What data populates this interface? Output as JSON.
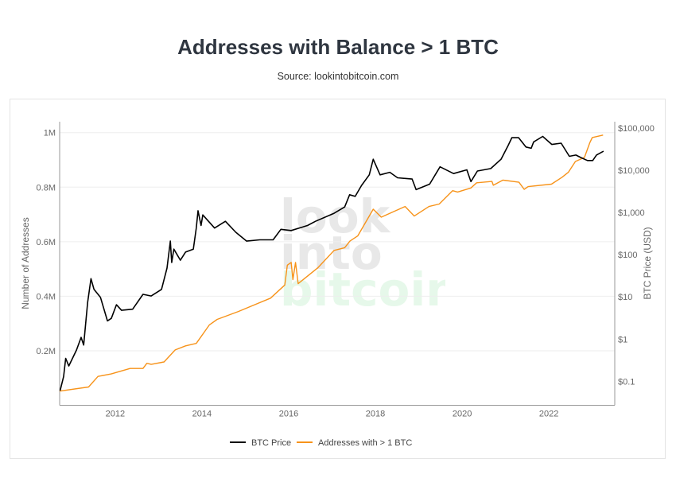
{
  "title": "Addresses with Balance > 1 BTC",
  "subtitle": "Source: lookintobitcoin.com",
  "watermark": [
    "look",
    "into",
    "bitcoin"
  ],
  "chart_data": {
    "type": "line",
    "xlabel": "",
    "ylabel_left": "Number of Addresses",
    "ylabel_right": "BTC Price (USD)",
    "x_range": [
      "2010-09-20",
      "2023-07-08"
    ],
    "x_ticks": [
      "2012",
      "2014",
      "2016",
      "2018",
      "2020",
      "2022"
    ],
    "y_left_range": [
      0,
      1040000
    ],
    "y_left_ticks": [
      {
        "v": 200000,
        "label": "0.2M"
      },
      {
        "v": 400000,
        "label": "0.4M"
      },
      {
        "v": 600000,
        "label": "0.6M"
      },
      {
        "v": 800000,
        "label": "0.8M"
      },
      {
        "v": 1000000,
        "label": "1M"
      }
    ],
    "y_right_scale": "log",
    "y_right_range": [
      0.027,
      141000
    ],
    "y_right_ticks": [
      {
        "v": 0.1,
        "label": "$0.1"
      },
      {
        "v": 1,
        "label": "$1"
      },
      {
        "v": 10,
        "label": "$10"
      },
      {
        "v": 100,
        "label": "$100"
      },
      {
        "v": 1000,
        "label": "$1,000"
      },
      {
        "v": 10000,
        "label": "$10,000"
      },
      {
        "v": 100000,
        "label": "$100,000"
      }
    ],
    "grid": true,
    "legend_position": "bottom",
    "series": [
      {
        "name": "BTC Price",
        "axis": "right",
        "color": "#000000",
        "points": [
          [
            "2010-09-24",
            0.06
          ],
          [
            "2010-10-23",
            0.13
          ],
          [
            "2010-11-10",
            0.35
          ],
          [
            "2010-12-06",
            0.23
          ],
          [
            "2011-02-10",
            0.55
          ],
          [
            "2011-03-18",
            1.1
          ],
          [
            "2011-04-09",
            0.72
          ],
          [
            "2011-05-12",
            7.4
          ],
          [
            "2011-06-10",
            27
          ],
          [
            "2011-07-05",
            15
          ],
          [
            "2011-08-29",
            9.8
          ],
          [
            "2011-10-27",
            2.7
          ],
          [
            "2011-11-29",
            3.1
          ],
          [
            "2012-01-11",
            6.5
          ],
          [
            "2012-02-24",
            4.8
          ],
          [
            "2012-05-26",
            5.1
          ],
          [
            "2012-08-22",
            11.5
          ],
          [
            "2012-10-30",
            10.5
          ],
          [
            "2013-01-26",
            15
          ],
          [
            "2013-03-11",
            48
          ],
          [
            "2013-04-09",
            209
          ],
          [
            "2013-04-20",
            65
          ],
          [
            "2013-05-08",
            135
          ],
          [
            "2013-07-02",
            74
          ],
          [
            "2013-08-15",
            115
          ],
          [
            "2013-10-20",
            135
          ],
          [
            "2013-11-14",
            427
          ],
          [
            "2013-11-29",
            1096
          ],
          [
            "2013-12-24",
            490
          ],
          [
            "2014-01-08",
            871
          ],
          [
            "2014-04-16",
            427
          ],
          [
            "2014-07-16",
            617
          ],
          [
            "2014-10-12",
            339
          ],
          [
            "2015-01-12",
            209
          ],
          [
            "2015-05-01",
            224
          ],
          [
            "2015-08-22",
            224
          ],
          [
            "2015-10-27",
            398
          ],
          [
            "2016-01-22",
            372
          ],
          [
            "2016-06-07",
            490
          ],
          [
            "2016-08-14",
            617
          ],
          [
            "2017-01-18",
            955
          ],
          [
            "2017-04-16",
            1349
          ],
          [
            "2017-05-27",
            2630
          ],
          [
            "2017-07-13",
            2399
          ],
          [
            "2017-09-06",
            4365
          ],
          [
            "2017-11-10",
            7762
          ],
          [
            "2017-12-13",
            18197
          ],
          [
            "2018-02-10",
            7762
          ],
          [
            "2018-05-01",
            8913
          ],
          [
            "2018-07-05",
            6607
          ],
          [
            "2018-11-06",
            6166
          ],
          [
            "2018-12-09",
            3467
          ],
          [
            "2019-04-01",
            4677
          ],
          [
            "2019-06-28",
            12023
          ],
          [
            "2019-10-20",
            8318
          ],
          [
            "2020-02-10",
            10233
          ],
          [
            "2020-03-14",
            5370
          ],
          [
            "2020-05-08",
            9550
          ],
          [
            "2020-08-29",
            10965
          ],
          [
            "2020-11-24",
            18197
          ],
          [
            "2021-01-22",
            38019
          ],
          [
            "2021-02-24",
            58884
          ],
          [
            "2021-04-20",
            58884
          ],
          [
            "2021-06-21",
            35481
          ],
          [
            "2021-08-04",
            33113
          ],
          [
            "2021-08-25",
            46774
          ],
          [
            "2021-11-10",
            63096
          ],
          [
            "2022-01-26",
            40738
          ],
          [
            "2022-04-13",
            43652
          ],
          [
            "2022-06-21",
            21380
          ],
          [
            "2022-08-15",
            22909
          ],
          [
            "2022-09-28",
            19953
          ],
          [
            "2022-11-22",
            16982
          ],
          [
            "2023-01-05",
            16982
          ],
          [
            "2023-02-06",
            22909
          ],
          [
            "2023-04-05",
            28184
          ]
        ]
      },
      {
        "name": "Addresses with > 1 BTC",
        "axis": "left",
        "color": "#f7931a",
        "points": [
          [
            "2010-09-20",
            52000
          ],
          [
            "2011-05-20",
            67000
          ],
          [
            "2011-08-08",
            106000
          ],
          [
            "2011-11-28",
            115000
          ],
          [
            "2012-05-05",
            135000
          ],
          [
            "2012-08-22",
            135000
          ],
          [
            "2012-09-24",
            154000
          ],
          [
            "2012-10-30",
            150000
          ],
          [
            "2013-02-17",
            159000
          ],
          [
            "2013-05-19",
            203000
          ],
          [
            "2013-08-15",
            218000
          ],
          [
            "2013-11-14",
            227000
          ],
          [
            "2014-03-03",
            295000
          ],
          [
            "2014-05-08",
            315000
          ],
          [
            "2014-11-03",
            344000
          ],
          [
            "2015-07-31",
            393000
          ],
          [
            "2015-11-29",
            441000
          ],
          [
            "2015-12-20",
            514000
          ],
          [
            "2016-01-22",
            524000
          ],
          [
            "2016-02-06",
            461000
          ],
          [
            "2016-02-28",
            524000
          ],
          [
            "2016-03-20",
            446000
          ],
          [
            "2016-09-05",
            505000
          ],
          [
            "2017-01-18",
            568000
          ],
          [
            "2017-04-16",
            578000
          ],
          [
            "2017-05-30",
            602000
          ],
          [
            "2017-08-04",
            621000
          ],
          [
            "2017-12-13",
            719000
          ],
          [
            "2018-02-20",
            690000
          ],
          [
            "2018-09-08",
            729000
          ],
          [
            "2018-11-24",
            694000
          ],
          [
            "2019-03-26",
            729000
          ],
          [
            "2019-06-21",
            738000
          ],
          [
            "2019-10-12",
            787000
          ],
          [
            "2019-11-24",
            782000
          ],
          [
            "2020-03-14",
            797000
          ],
          [
            "2020-05-01",
            816000
          ],
          [
            "2020-09-09",
            821000
          ],
          [
            "2020-09-20",
            807000
          ],
          [
            "2020-12-10",
            826000
          ],
          [
            "2021-04-23",
            818000
          ],
          [
            "2021-06-06",
            792000
          ],
          [
            "2021-07-09",
            802000
          ],
          [
            "2022-01-23",
            811000
          ],
          [
            "2022-04-20",
            836000
          ],
          [
            "2022-06-14",
            855000
          ],
          [
            "2022-08-11",
            894000
          ],
          [
            "2022-10-27",
            909000
          ],
          [
            "2022-12-10",
            962000
          ],
          [
            "2023-01-01",
            982000
          ],
          [
            "2023-04-01",
            991000
          ]
        ]
      }
    ]
  }
}
